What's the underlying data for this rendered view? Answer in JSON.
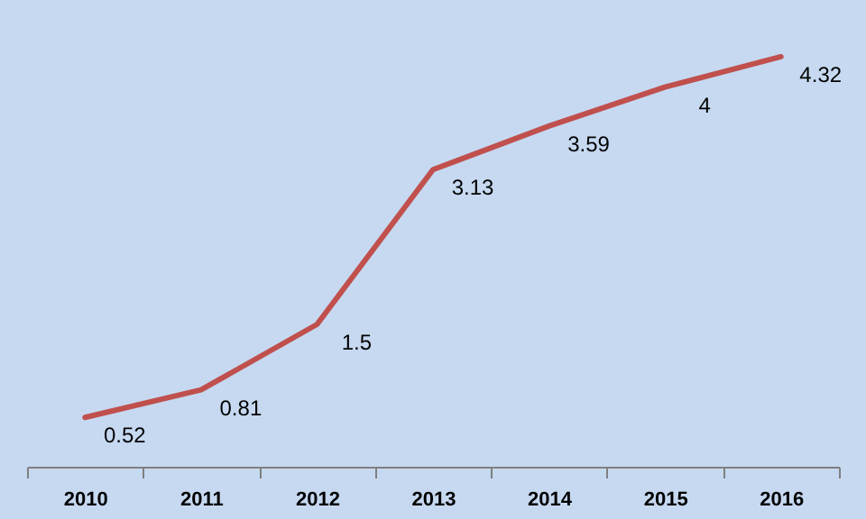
{
  "chart_data": {
    "type": "line",
    "categories": [
      "2010",
      "2011",
      "2012",
      "2013",
      "2014",
      "2015",
      "2016"
    ],
    "series": [
      {
        "color": "#c0504d",
        "values": [
          0.52,
          0.81,
          1.5,
          3.13,
          3.59,
          4,
          4.32
        ]
      }
    ],
    "data_labels": true,
    "marker": "none",
    "line_style": "solid"
  }
}
